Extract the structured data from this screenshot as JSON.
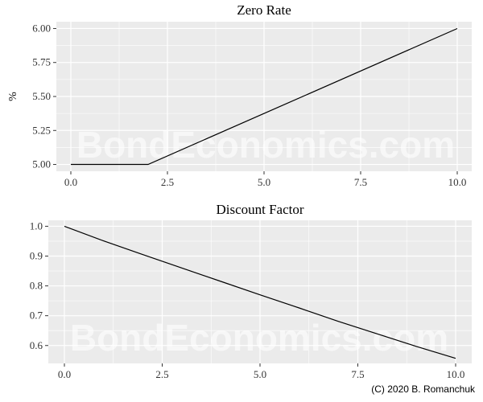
{
  "watermark": "BondEconomics.com",
  "copyright": "(C) 2020 B. Romanchuk",
  "colors": {
    "panel_bg": "#ebebeb",
    "grid": "#ffffff",
    "line": "#000000",
    "tick": "#333333"
  },
  "chart_data": [
    {
      "type": "line",
      "title": "Zero Rate",
      "xlabel": "",
      "ylabel": "%",
      "xlim": [
        0,
        10
      ],
      "ylim": [
        4.95,
        6.05
      ],
      "x_ticks": [
        0,
        2.5,
        5,
        7.5,
        10
      ],
      "x_tick_labels": [
        "0.0",
        "2.5",
        "5.0",
        "7.5",
        "10.0"
      ],
      "y_ticks": [
        5.0,
        5.25,
        5.5,
        5.75,
        6.0
      ],
      "y_tick_labels": [
        "5.00",
        "5.25",
        "5.50",
        "5.75",
        "6.00"
      ],
      "grid": true,
      "series": [
        {
          "x": [
            0,
            2,
            10
          ],
          "y": [
            5.0,
            5.0,
            6.0
          ]
        }
      ]
    },
    {
      "type": "line",
      "title": "Discount Factor",
      "xlabel": "",
      "ylabel": "",
      "xlim": [
        0,
        10
      ],
      "ylim": [
        0.54,
        1.02
      ],
      "x_ticks": [
        0,
        2.5,
        5,
        7.5,
        10
      ],
      "x_tick_labels": [
        "0.0",
        "2.5",
        "5.0",
        "7.5",
        "10.0"
      ],
      "y_ticks": [
        0.6,
        0.7,
        0.8,
        0.9,
        1.0
      ],
      "y_tick_labels": [
        "0.6",
        "0.7",
        "0.8",
        "0.9",
        "1.0"
      ],
      "grid": true,
      "series": [
        {
          "x": [
            0,
            1,
            2,
            3,
            4,
            5,
            6,
            7,
            8,
            9,
            10
          ],
          "y": [
            1.0,
            0.951,
            0.905,
            0.86,
            0.815,
            0.77,
            0.726,
            0.681,
            0.639,
            0.597,
            0.557
          ]
        }
      ]
    }
  ]
}
